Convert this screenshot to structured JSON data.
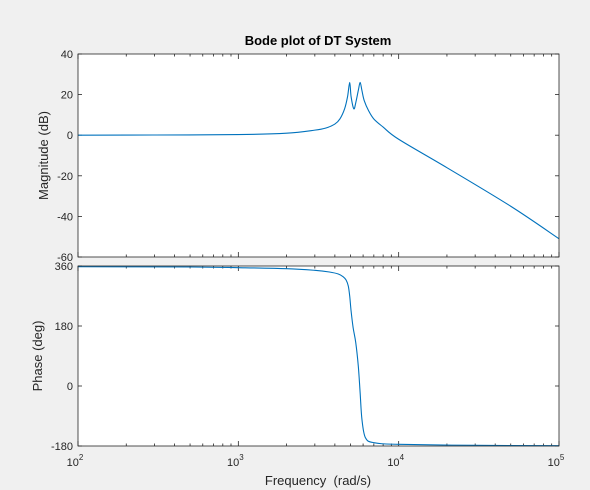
{
  "chart_data": [
    {
      "type": "line",
      "title": "Bode plot of DT System",
      "xlabel": "",
      "ylabel": "Magnitude (dB)",
      "xscale": "log",
      "xlim": [
        100,
        100000
      ],
      "ylim": [
        -60,
        40
      ],
      "grid": false,
      "x_ticks": [
        100,
        1000,
        10000,
        100000
      ],
      "y_ticks": [
        40,
        20,
        0,
        -20,
        -40,
        -60
      ],
      "y_tick_labels": [
        "40",
        "20",
        "0",
        "-20",
        "-40",
        "-60"
      ],
      "series": [
        {
          "color": "#0072bd",
          "x": [
            100,
            300,
            1000,
            2000,
            3000,
            3500,
            4000,
            4300,
            4600,
            4800,
            4950,
            5050,
            5250,
            5400,
            5600,
            5750,
            5900,
            6100,
            6500,
            7000,
            8000,
            10000,
            20000,
            50000,
            100000
          ],
          "y": [
            0,
            0.1,
            0.3,
            1,
            2.5,
            3.5,
            5.5,
            8,
            13,
            19,
            26,
            19,
            13,
            16,
            22,
            26,
            22,
            17,
            12,
            8,
            4,
            -2,
            -16,
            -35,
            -51
          ]
        }
      ]
    },
    {
      "type": "line",
      "title": "",
      "xlabel": "Frequency  (rad/s)",
      "ylabel": "Phase (deg)",
      "xscale": "log",
      "xlim": [
        100,
        100000
      ],
      "ylim": [
        -180,
        360
      ],
      "grid": false,
      "x_ticks": [
        100,
        1000,
        10000,
        100000
      ],
      "x_tick_labels": [
        {
          "base": "10",
          "exp": "2"
        },
        {
          "base": "10",
          "exp": "3"
        },
        {
          "base": "10",
          "exp": "4"
        },
        {
          "base": "10",
          "exp": "5"
        }
      ],
      "y_ticks": [
        360,
        180,
        0,
        -180
      ],
      "y_tick_labels": [
        "360",
        "180",
        "0",
        "-180"
      ],
      "series": [
        {
          "color": "#0072bd",
          "x": [
            100,
            500,
            1000,
            2000,
            3000,
            3700,
            4200,
            4500,
            4700,
            4850,
            4950,
            5050,
            5200,
            5400,
            5600,
            5750,
            5900,
            6200,
            7000,
            10000,
            30000,
            100000
          ],
          "y": [
            358,
            357,
            355,
            352,
            347,
            342,
            336,
            328,
            318,
            300,
            270,
            225,
            175,
            130,
            60,
            -20,
            -100,
            -155,
            -170,
            -175,
            -178,
            -179
          ]
        }
      ]
    }
  ]
}
